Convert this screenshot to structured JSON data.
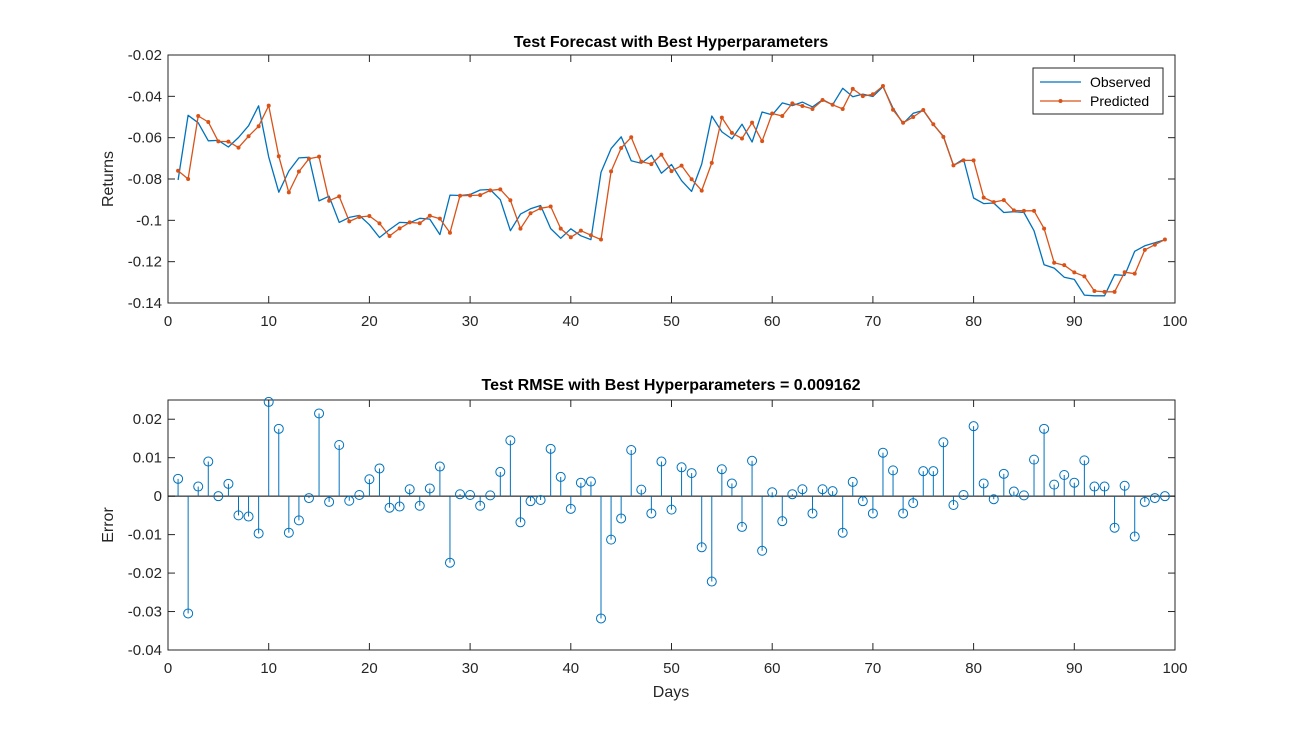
{
  "colors": {
    "observed": "#0072BD",
    "predicted": "#D95319",
    "axis": "#262626",
    "background": "#ffffff"
  },
  "chart_data": [
    {
      "type": "line",
      "title": "Test Forecast with Best Hyperparameters",
      "xlabel": "",
      "ylabel": "Returns",
      "xlim": [
        0,
        100
      ],
      "ylim": [
        -0.14,
        -0.02
      ],
      "xticks": [
        "0",
        "10",
        "20",
        "30",
        "40",
        "50",
        "60",
        "70",
        "80",
        "90",
        "100"
      ],
      "yticks": [
        "-0.14",
        "-0.12",
        "-0.1",
        "-0.08",
        "-0.06",
        "-0.04",
        "-0.02"
      ],
      "grid": false,
      "legend_position": "top-right",
      "x": [
        1,
        2,
        3,
        4,
        5,
        6,
        7,
        8,
        9,
        10,
        11,
        12,
        13,
        14,
        15,
        16,
        17,
        18,
        19,
        20,
        21,
        22,
        23,
        24,
        25,
        26,
        27,
        28,
        29,
        30,
        31,
        32,
        33,
        34,
        35,
        36,
        37,
        38,
        39,
        40,
        41,
        42,
        43,
        44,
        45,
        46,
        47,
        48,
        49,
        50,
        51,
        52,
        53,
        54,
        55,
        56,
        57,
        58,
        59,
        60,
        61,
        62,
        63,
        64,
        65,
        66,
        67,
        68,
        69,
        70,
        71,
        72,
        73,
        74,
        75,
        76,
        77,
        78,
        79,
        80,
        81,
        82,
        83,
        84,
        85,
        86,
        87,
        88,
        89,
        90,
        91,
        92,
        93,
        94,
        95,
        96,
        97,
        98,
        99
      ],
      "series": [
        {
          "name": "Observed",
          "marker": "none",
          "values": [
            -0.0805,
            -0.0492,
            -0.0528,
            -0.0615,
            -0.0613,
            -0.0645,
            -0.0599,
            -0.0542,
            -0.0446,
            -0.0693,
            -0.0864,
            -0.0762,
            -0.0698,
            -0.0695,
            -0.0906,
            -0.0883,
            -0.101,
            -0.0986,
            -0.0976,
            -0.1021,
            -0.1083,
            -0.1045,
            -0.101,
            -0.1012,
            -0.099,
            -0.0994,
            -0.1069,
            -0.0878,
            -0.088,
            -0.0875,
            -0.0853,
            -0.0851,
            -0.09,
            -0.105,
            -0.097,
            -0.0944,
            -0.0928,
            -0.104,
            -0.1087,
            -0.1041,
            -0.1075,
            -0.1093,
            -0.0768,
            -0.0653,
            -0.0596,
            -0.0712,
            -0.0724,
            -0.0685,
            -0.0772,
            -0.073,
            -0.0808,
            -0.086,
            -0.0728,
            -0.0495,
            -0.0572,
            -0.0606,
            -0.0535,
            -0.0621,
            -0.0476,
            -0.049,
            -0.0432,
            -0.0445,
            -0.0428,
            -0.0451,
            -0.0416,
            -0.0441,
            -0.0361,
            -0.0402,
            -0.0389,
            -0.0401,
            -0.0353,
            -0.0457,
            -0.0532,
            -0.0482,
            -0.0468,
            -0.0537,
            -0.0593,
            -0.0734,
            -0.0703,
            -0.0892,
            -0.0919,
            -0.0916,
            -0.0962,
            -0.0958,
            -0.0962,
            -0.105,
            -0.1215,
            -0.1231,
            -0.1275,
            -0.1286,
            -0.1362,
            -0.1365,
            -0.1365,
            -0.1263,
            -0.1267,
            -0.115,
            -0.1123,
            -0.1108,
            -0.1094
          ]
        },
        {
          "name": "Predicted",
          "marker": "dot",
          "values": [
            -0.076,
            -0.08,
            -0.0495,
            -0.0524,
            -0.0618,
            -0.0619,
            -0.0648,
            -0.0593,
            -0.0545,
            -0.0445,
            -0.069,
            -0.0865,
            -0.0764,
            -0.0702,
            -0.0692,
            -0.0905,
            -0.0884,
            -0.1005,
            -0.0984,
            -0.0979,
            -0.1015,
            -0.1076,
            -0.1039,
            -0.101,
            -0.1014,
            -0.0978,
            -0.0992,
            -0.106,
            -0.0881,
            -0.088,
            -0.0878,
            -0.0855,
            -0.085,
            -0.0903,
            -0.104,
            -0.0966,
            -0.0942,
            -0.0933,
            -0.104,
            -0.1082,
            -0.105,
            -0.1072,
            -0.1093,
            -0.0763,
            -0.065,
            -0.0598,
            -0.0716,
            -0.0728,
            -0.0682,
            -0.0762,
            -0.0735,
            -0.0801,
            -0.0856,
            -0.0722,
            -0.0503,
            -0.0577,
            -0.0604,
            -0.0527,
            -0.0617,
            -0.0483,
            -0.0495,
            -0.0434,
            -0.0447,
            -0.0461,
            -0.0418,
            -0.0441,
            -0.0461,
            -0.0364,
            -0.0399,
            -0.039,
            -0.035,
            -0.0465,
            -0.0528,
            -0.05,
            -0.0466,
            -0.0535,
            -0.0596,
            -0.0734,
            -0.071,
            -0.071,
            -0.089,
            -0.0912,
            -0.0902,
            -0.0952,
            -0.0954,
            -0.0954,
            -0.104,
            -0.1205,
            -0.1217,
            -0.1252,
            -0.1271,
            -0.1342,
            -0.1346,
            -0.1346,
            -0.1251,
            -0.1258,
            -0.1143,
            -0.1118,
            -0.1093
          ]
        }
      ]
    },
    {
      "type": "stem",
      "title": "Test RMSE with Best Hyperparameters = 0.009162",
      "xlabel": "Days",
      "ylabel": "Error",
      "xlim": [
        0,
        100
      ],
      "ylim": [
        -0.04,
        0.025
      ],
      "xticks": [
        "0",
        "10",
        "20",
        "30",
        "40",
        "50",
        "60",
        "70",
        "80",
        "90",
        "100"
      ],
      "yticks": [
        "-0.04",
        "-0.03",
        "-0.02",
        "-0.01",
        "0",
        "0.01",
        "0.02"
      ],
      "grid": false,
      "x": [
        1,
        2,
        3,
        4,
        5,
        6,
        7,
        8,
        9,
        10,
        11,
        12,
        13,
        14,
        15,
        16,
        17,
        18,
        19,
        20,
        21,
        22,
        23,
        24,
        25,
        26,
        27,
        28,
        29,
        30,
        31,
        32,
        33,
        34,
        35,
        36,
        37,
        38,
        39,
        40,
        41,
        42,
        43,
        44,
        45,
        46,
        47,
        48,
        49,
        50,
        51,
        52,
        53,
        54,
        55,
        56,
        57,
        58,
        59,
        60,
        61,
        62,
        63,
        64,
        65,
        66,
        67,
        68,
        69,
        70,
        71,
        72,
        73,
        74,
        75,
        76,
        77,
        78,
        79,
        80,
        81,
        82,
        83,
        84,
        85,
        86,
        87,
        88,
        89,
        90,
        91,
        92,
        93,
        94,
        95,
        96,
        97,
        98,
        99
      ],
      "values": [
        0.0045,
        -0.0305,
        0.0025,
        0.009,
        0.0,
        0.0032,
        -0.005,
        -0.0053,
        -0.0097,
        0.0245,
        0.0175,
        -0.0095,
        -0.0063,
        -0.0005,
        0.0215,
        -0.0015,
        0.0133,
        -0.0012,
        0.0003,
        0.0044,
        0.0072,
        -0.003,
        -0.0027,
        0.0018,
        -0.0025,
        0.002,
        0.0077,
        -0.0173,
        0.0005,
        0.0003,
        -0.0025,
        0.0002,
        0.0063,
        0.0145,
        -0.0068,
        -0.0013,
        -0.001,
        0.0123,
        0.005,
        -0.0033,
        0.0035,
        0.0038,
        -0.0318,
        -0.0113,
        -0.0058,
        0.012,
        0.0017,
        -0.0045,
        0.009,
        -0.0035,
        0.0075,
        0.006,
        -0.0133,
        -0.0222,
        0.007,
        0.0033,
        -0.008,
        0.0092,
        -0.0142,
        0.001,
        -0.0065,
        0.0005,
        0.0018,
        -0.0045,
        0.0018,
        0.0013,
        -0.0095,
        0.0037,
        -0.0013,
        -0.0045,
        0.0113,
        0.0067,
        -0.0045,
        -0.0018,
        0.0065,
        0.0065,
        0.014,
        -0.0023,
        0.0003,
        0.0182,
        0.0033,
        -0.0008,
        0.0058,
        0.0012,
        0.0002,
        0.0095,
        0.0175,
        0.003,
        0.0055,
        0.0035,
        0.0093,
        0.0025,
        0.0025,
        -0.0082,
        0.0027,
        -0.0105,
        -0.0015,
        -0.0005,
        0.0
      ]
    }
  ]
}
